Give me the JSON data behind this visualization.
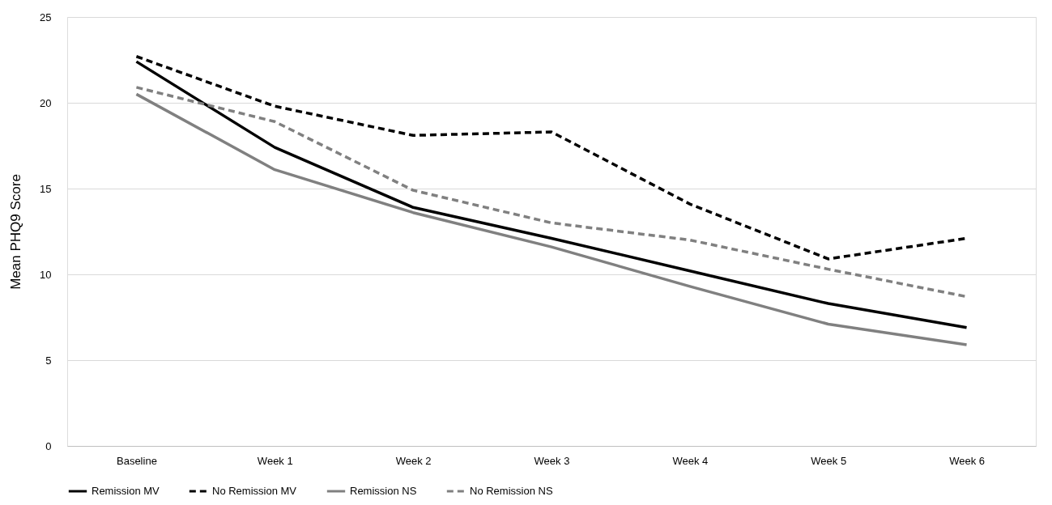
{
  "chart_data": {
    "type": "line",
    "ylabel": "Mean PHQ9 Score",
    "categories": [
      "Baseline",
      "Week 1",
      "Week 2",
      "Week 3",
      "Week 4",
      "Week 5",
      "Week 6"
    ],
    "series": [
      {
        "name": "Remission MV",
        "color": "#000000",
        "line_style": "solid",
        "values": [
          22.4,
          17.4,
          13.9,
          12.1,
          10.2,
          8.3,
          6.9
        ]
      },
      {
        "name": "No Remission MV",
        "color": "#000000",
        "line_style": "dashed",
        "values": [
          22.7,
          19.8,
          18.1,
          18.3,
          14.1,
          10.9,
          12.1
        ]
      },
      {
        "name": "Remission NS",
        "color": "#808080",
        "line_style": "solid",
        "values": [
          20.5,
          16.1,
          13.6,
          11.6,
          9.3,
          7.1,
          5.9
        ]
      },
      {
        "name": "No Remission NS",
        "color": "#808080",
        "line_style": "dashed",
        "values": [
          20.9,
          18.9,
          14.9,
          13.0,
          12.0,
          10.3,
          8.7
        ]
      }
    ],
    "ylim": [
      0,
      25
    ],
    "yticks": [
      0,
      5,
      10,
      15,
      20,
      25
    ],
    "grid": "y",
    "legend": "bottom",
    "marker": "none"
  }
}
